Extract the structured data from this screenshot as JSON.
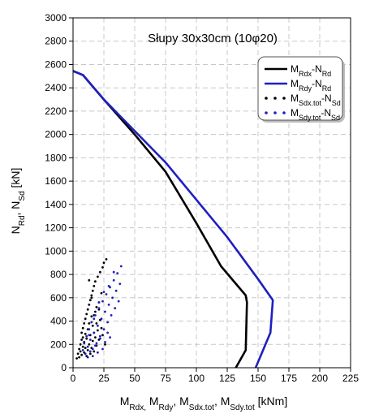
{
  "chart_data": {
    "type": "line",
    "title": "Słupy 30x30cm (10φ20)",
    "xlim": [
      0,
      225
    ],
    "ylim": [
      0,
      3000
    ],
    "x_ticks": [
      "0",
      "25",
      "50",
      "75",
      "100",
      "125",
      "150",
      "175",
      "200",
      "225"
    ],
    "y_ticks": [
      "0",
      "200",
      "400",
      "600",
      "800",
      "1000",
      "1200",
      "1400",
      "1600",
      "1800",
      "2000",
      "2200",
      "2400",
      "2600",
      "2800",
      "3000"
    ],
    "x_tick_values": [
      0,
      25,
      50,
      75,
      100,
      125,
      150,
      175,
      200,
      225
    ],
    "y_tick_values": [
      0,
      200,
      400,
      600,
      800,
      1000,
      1200,
      1400,
      1600,
      1800,
      2000,
      2200,
      2400,
      2600,
      2800,
      3000
    ],
    "grid": true,
    "legend_position": "top-right",
    "xlabel": {
      "parts": [
        {
          "t": "M",
          "sub": false
        },
        {
          "t": "Rdx,",
          "sub": true
        },
        {
          "t": " M",
          "sub": false
        },
        {
          "t": "Rdy",
          "sub": true
        },
        {
          "t": ", M",
          "sub": false
        },
        {
          "t": "Sdx.tot",
          "sub": true
        },
        {
          "t": ", M",
          "sub": false
        },
        {
          "t": "Sdy.tot",
          "sub": true
        },
        {
          "t": " [kNm]",
          "sub": false
        }
      ]
    },
    "ylabel": {
      "parts": [
        {
          "t": "N",
          "sub": false
        },
        {
          "t": "Rd",
          "sub": true
        },
        {
          "t": ", N",
          "sub": false
        },
        {
          "t": "Sd",
          "sub": true
        },
        {
          "t": "   [kN]",
          "sub": false
        }
      ]
    },
    "series": [
      {
        "name": "MRdx-NRd",
        "legend_parts": [
          {
            "t": "M",
            "sub": false
          },
          {
            "t": "Rdx",
            "sub": true
          },
          {
            "t": "-N",
            "sub": false
          },
          {
            "t": "Rd",
            "sub": true
          }
        ],
        "kind": "line",
        "color": "#000000",
        "x": [
          0,
          8,
          25,
          50,
          75,
          100,
          120,
          140,
          141,
          140,
          132
        ],
        "y": [
          2545,
          2510,
          2300,
          2000,
          1680,
          1240,
          870,
          620,
          560,
          150,
          0
        ]
      },
      {
        "name": "MRdy-NRd",
        "legend_parts": [
          {
            "t": "M",
            "sub": false
          },
          {
            "t": "Rdy",
            "sub": true
          },
          {
            "t": "-N",
            "sub": false
          },
          {
            "t": "Rd",
            "sub": true
          }
        ],
        "kind": "line",
        "color": "#1f1fbf",
        "x": [
          0,
          8,
          25,
          50,
          75,
          100,
          125,
          150,
          162,
          160,
          148
        ],
        "y": [
          2545,
          2510,
          2300,
          2030,
          1760,
          1440,
          1120,
          760,
          580,
          300,
          0
        ]
      },
      {
        "name": "MSdx.tot-NSd",
        "legend_parts": [
          {
            "t": "M",
            "sub": false
          },
          {
            "t": "Sdx.tot",
            "sub": true
          },
          {
            "t": "-N",
            "sub": false
          },
          {
            "t": "Sd",
            "sub": true
          }
        ],
        "kind": "scatter",
        "color": "#000000",
        "x": [
          3,
          4,
          5,
          5,
          6,
          6,
          7,
          7,
          7,
          8,
          8,
          8,
          9,
          9,
          9,
          10,
          10,
          10,
          11,
          11,
          11,
          12,
          12,
          12,
          13,
          13,
          13,
          14,
          14,
          14,
          15,
          15,
          15,
          16,
          16,
          16,
          17,
          17,
          17,
          18,
          18,
          18,
          19,
          19,
          20,
          20,
          21,
          21,
          22,
          22,
          23,
          24,
          24,
          25,
          26,
          27,
          13,
          15,
          17,
          19,
          21,
          23
        ],
        "y": [
          80,
          120,
          160,
          90,
          200,
          140,
          240,
          110,
          300,
          180,
          260,
          340,
          130,
          220,
          380,
          170,
          290,
          420,
          100,
          250,
          460,
          150,
          330,
          500,
          200,
          380,
          540,
          120,
          280,
          580,
          170,
          440,
          620,
          230,
          360,
          660,
          140,
          300,
          700,
          260,
          480,
          740,
          190,
          520,
          320,
          780,
          240,
          560,
          410,
          820,
          640,
          280,
          860,
          900,
          200,
          930,
          750,
          600,
          450,
          380,
          500,
          340
        ]
      },
      {
        "name": "MSdy.tot-NSd",
        "legend_parts": [
          {
            "t": "M",
            "sub": false
          },
          {
            "t": "Sdy.tot",
            "sub": true
          },
          {
            "t": "-N",
            "sub": false
          },
          {
            "t": "Sd",
            "sub": true
          }
        ],
        "kind": "scatter",
        "color": "#1f1fbf",
        "x": [
          8,
          9,
          10,
          11,
          12,
          13,
          14,
          15,
          16,
          17,
          18,
          19,
          20,
          21,
          22,
          23,
          24,
          25,
          26,
          27,
          28,
          29,
          30,
          31,
          32,
          33,
          34,
          35,
          36,
          37,
          38,
          39,
          12,
          14,
          16,
          18,
          20,
          22,
          24,
          26,
          28,
          30,
          13,
          17,
          21,
          25,
          29,
          33
        ],
        "y": [
          150,
          210,
          120,
          270,
          180,
          330,
          240,
          390,
          160,
          300,
          450,
          210,
          360,
          510,
          270,
          420,
          570,
          330,
          480,
          630,
          390,
          540,
          690,
          450,
          600,
          750,
          510,
          660,
          810,
          570,
          720,
          870,
          90,
          140,
          100,
          190,
          130,
          250,
          160,
          220,
          300,
          260,
          280,
          420,
          560,
          650,
          700,
          820
        ]
      }
    ]
  }
}
